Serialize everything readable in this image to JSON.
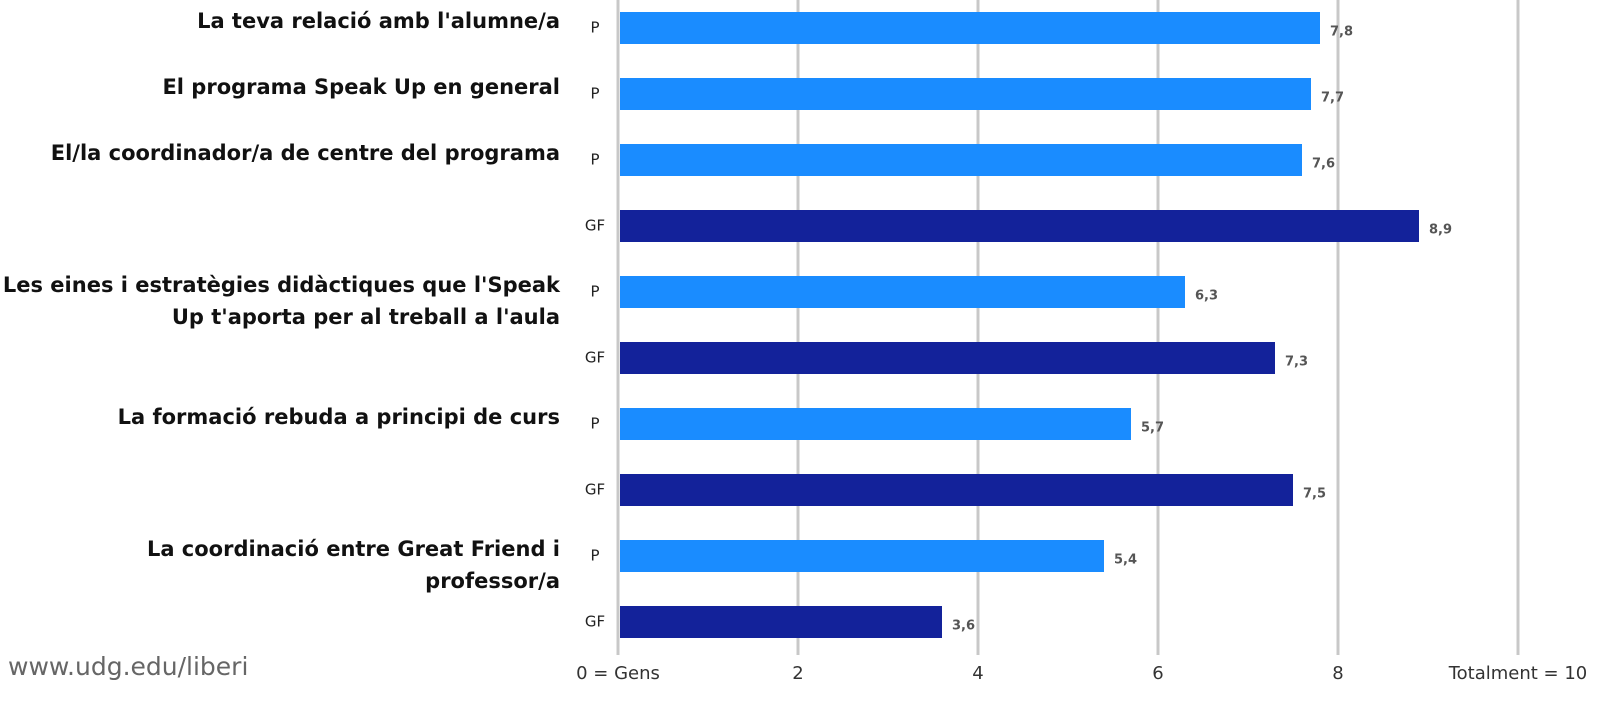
{
  "footer": "www.udg.edu/liberi",
  "chart_data": {
    "type": "bar",
    "orientation": "horizontal",
    "groups": [
      {
        "label": [
          "La teva relació amb l'alumne/a"
        ],
        "categories": [
          "P"
        ],
        "values": [
          7.8
        ],
        "value_labels": [
          "7,8"
        ],
        "colors": [
          "#1a8cff"
        ]
      },
      {
        "label": [
          "El programa Speak Up en general"
        ],
        "categories": [
          "P"
        ],
        "values": [
          7.7
        ],
        "value_labels": [
          "7,7"
        ],
        "colors": [
          "#1a8cff"
        ]
      },
      {
        "label": [
          "El/la coordinador/a de centre del programa"
        ],
        "categories": [
          "P",
          "GF"
        ],
        "values": [
          7.6,
          8.9
        ],
        "value_labels": [
          "7,6",
          "8,9"
        ],
        "colors": [
          "#1a8cff",
          "#13229a"
        ]
      },
      {
        "label": [
          "Les eines i estratègies didàctiques  que l'Speak",
          "Up t'aporta per al treball a l'aula"
        ],
        "categories": [
          "P",
          "GF"
        ],
        "values": [
          6.3,
          7.3
        ],
        "value_labels": [
          "6,3",
          "7,3"
        ],
        "colors": [
          "#1a8cff",
          "#13229a"
        ]
      },
      {
        "label": [
          "La formació rebuda a principi de curs"
        ],
        "categories": [
          "P",
          "GF"
        ],
        "values": [
          5.7,
          7.5
        ],
        "value_labels": [
          "5,7",
          "7,5"
        ],
        "colors": [
          "#1a8cff",
          "#13229a"
        ]
      },
      {
        "label": [
          "La coordinació entre Great Friend i",
          "professor/a"
        ],
        "categories": [
          "P",
          "GF"
        ],
        "values": [
          5.4,
          3.6
        ],
        "value_labels": [
          "5,4",
          "3,6"
        ],
        "colors": [
          "#1a8cff",
          "#13229a"
        ]
      }
    ],
    "xlim": [
      0,
      10
    ],
    "xticks": [
      {
        "value": 0,
        "label": "0 = Gens"
      },
      2,
      4,
      6,
      8,
      {
        "value": 10,
        "label": "Totalment = 10"
      }
    ],
    "grid": true
  }
}
